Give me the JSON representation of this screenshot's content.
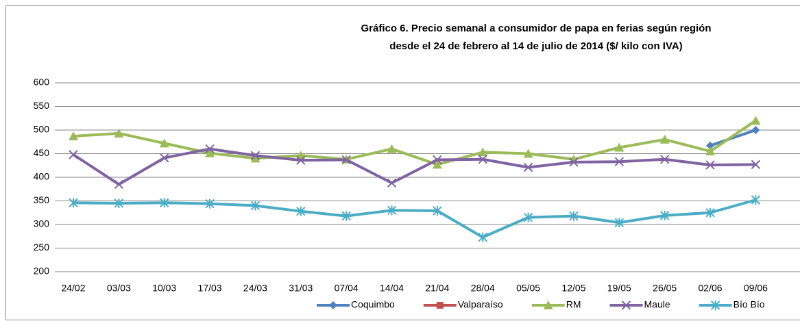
{
  "chart_data": {
    "type": "line",
    "title": [
      "Gráfico 6. Precio semanal a consumidor de papa en ferias según región",
      "desde el 24 de febrero al 14 de julio de 2014 ($/ kilo con IVA)"
    ],
    "categories": [
      "24/02",
      "03/03",
      "10/03",
      "17/03",
      "24/03",
      "31/03",
      "07/04",
      "14/04",
      "21/04",
      "28/04",
      "05/05",
      "12/05",
      "19/05",
      "26/05",
      "02/06",
      "09/06"
    ],
    "series": [
      {
        "name": "Coquimbo",
        "color": "#4f81bd",
        "marker": "diamond",
        "values": [
          null,
          null,
          null,
          null,
          null,
          null,
          null,
          null,
          null,
          null,
          null,
          null,
          null,
          null,
          467,
          500
        ]
      },
      {
        "name": "Valparaíso",
        "color": "#c0504d",
        "marker": "square",
        "values": [
          null,
          null,
          null,
          null,
          null,
          null,
          null,
          null,
          null,
          null,
          null,
          null,
          null,
          null,
          null,
          null
        ]
      },
      {
        "name": "RM",
        "color": "#9bbb59",
        "marker": "triangle",
        "values": [
          487,
          493,
          472,
          451,
          440,
          446,
          438,
          460,
          427,
          453,
          450,
          438,
          463,
          480,
          455,
          520
        ]
      },
      {
        "name": "Maule",
        "color": "#8064a2",
        "marker": "x",
        "values": [
          448,
          385,
          441,
          460,
          446,
          436,
          437,
          388,
          437,
          438,
          421,
          432,
          433,
          438,
          426,
          427
        ]
      },
      {
        "name": "Bío Bío",
        "color": "#4bacc6",
        "marker": "star",
        "values": [
          346,
          345,
          346,
          344,
          340,
          328,
          318,
          330,
          329,
          273,
          315,
          318,
          304,
          319,
          325,
          352
        ]
      }
    ],
    "ylim": [
      200,
      600
    ],
    "yticks": [
      200,
      250,
      300,
      350,
      400,
      450,
      500,
      550,
      600
    ],
    "grid": true,
    "legend": "bottom"
  }
}
